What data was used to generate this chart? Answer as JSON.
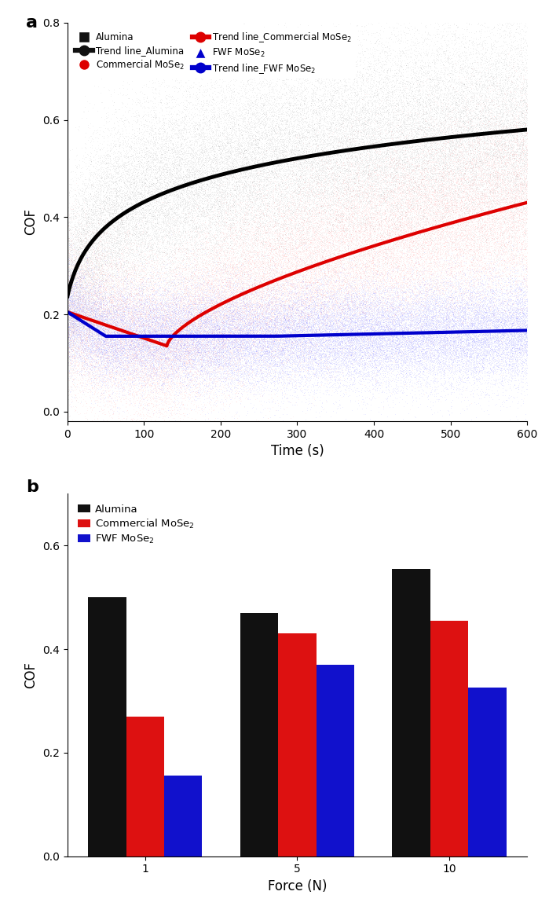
{
  "panel_a": {
    "xlabel": "Time (s)",
    "ylabel": "COF",
    "xlim": [
      0,
      600
    ],
    "ylim": [
      -0.02,
      0.8
    ],
    "yticks": [
      0,
      0.2,
      0.4,
      0.6,
      0.8
    ],
    "xticks": [
      0,
      100,
      200,
      300,
      400,
      500,
      600
    ],
    "alumina_scatter_color": "#888888",
    "commercial_scatter_color": "#ff8888",
    "fwf_scatter_color": "#8888ff",
    "alumina_trend_color": "#000000",
    "commercial_trend_color": "#dd0000",
    "fwf_trend_color": "#0000cc"
  },
  "panel_b": {
    "xlabel": "Force (N)",
    "ylabel": "COF",
    "ylim": [
      0,
      0.7
    ],
    "yticks": [
      0,
      0.2,
      0.4,
      0.6
    ],
    "forces": [
      1,
      5,
      10
    ],
    "alumina_vals": [
      0.5,
      0.47,
      0.555
    ],
    "commercial_vals": [
      0.27,
      0.43,
      0.455
    ],
    "fwf_vals": [
      0.155,
      0.37,
      0.325
    ],
    "alumina_color": "#111111",
    "commercial_color": "#dd1111",
    "fwf_color": "#1111cc",
    "bar_width": 0.25
  }
}
